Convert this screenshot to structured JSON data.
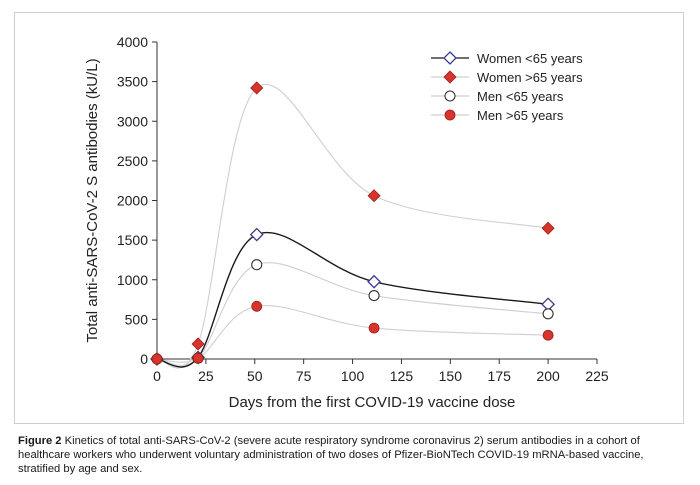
{
  "chart_data": {
    "type": "line",
    "xlabel": "Days from the first COVID-19 vaccine dose",
    "ylabel": "Total anti-SARS-CoV-2 S antibodies (kU/L)",
    "xlim": [
      0,
      225
    ],
    "ylim": [
      0,
      4000
    ],
    "xticks": [
      0,
      25,
      50,
      75,
      100,
      125,
      150,
      175,
      200,
      225
    ],
    "yticks": [
      0,
      500,
      1000,
      1500,
      2000,
      2500,
      3000,
      3500,
      4000
    ],
    "x": [
      0,
      21,
      51,
      111,
      200
    ],
    "grid": false,
    "legend_position": "top-right",
    "series": [
      {
        "name": "Women <65 years",
        "marker": "diamond-open",
        "color": "#3b3b8f",
        "values": [
          0,
          20,
          1570,
          975,
          690
        ]
      },
      {
        "name": "Women >65 years",
        "marker": "diamond-filled",
        "color": "#d6342c",
        "values": [
          0,
          190,
          3420,
          2060,
          1650
        ]
      },
      {
        "name": "Men <65 years",
        "marker": "circle-open",
        "color": "#333333",
        "values": [
          0,
          10,
          1190,
          800,
          570
        ]
      },
      {
        "name": "Men >65 years",
        "marker": "circle-filled",
        "color": "#d6342c",
        "values": [
          0,
          10,
          665,
          390,
          300
        ]
      }
    ]
  },
  "caption": {
    "label": "Figure 2",
    "text": " Kinetics of total anti-SARS-CoV-2 (severe acute respiratory syndrome coronavirus 2) serum antibodies in a cohort of healthcare workers who underwent voluntary administration of two doses of Pfizer-BioNTech COVID-19 mRNA-based vaccine, stratified by age and sex."
  }
}
